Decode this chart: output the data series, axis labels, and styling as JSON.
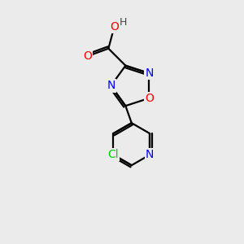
{
  "bg_color": "#ebebeb",
  "atom_colors": {
    "C": "#000000",
    "N": "#0000ff",
    "O": "#ff0000",
    "Cl": "#00cc00",
    "H": "#444444"
  },
  "bond_color": "#000000",
  "bond_width": 1.6,
  "font_size_atoms": 10,
  "xlim": [
    0,
    10
  ],
  "ylim": [
    0,
    12
  ]
}
